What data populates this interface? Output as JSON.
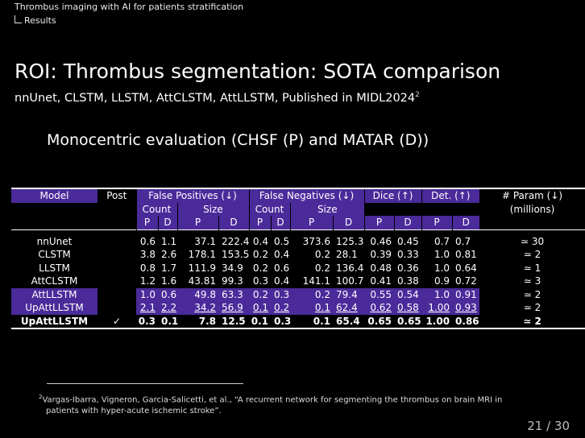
{
  "header": {
    "nav_title": "Thrombus imaging with AI for patients stratification",
    "nav_section": "Results"
  },
  "slide": {
    "title": "ROI: Thrombus segmentation: SOTA comparison",
    "subtitle": "nnUnet, CLSTM, LLSTM, AttCLSTM, AttLLSTM, Published in MIDL2024",
    "subtitle_ref": "2",
    "heading": "Monocentric evaluation (CHSF (P) and MATAR (D))"
  },
  "table": {
    "headers": {
      "model": "Model",
      "post": "Post",
      "fp": "False Positives (↓)",
      "fn": "False Negatives (↓)",
      "dice": "Dice (↑)",
      "det": "Det. (↑)",
      "param": "# Param (↓)",
      "param_unit": "(millions)",
      "count": "Count",
      "size": "Size",
      "p": "P",
      "d": "D"
    },
    "rows": [
      {
        "model": "nnUnet",
        "post": "",
        "fp_cp": "0.6",
        "fp_cd": "1.1",
        "fp_sp": "37.1",
        "fp_sd": "222.4",
        "fn_cp": "0.4",
        "fn_cd": "0.5",
        "fn_sp": "373.6",
        "fn_sd": "125.3",
        "dice_p": "0.46",
        "dice_d": "0.45",
        "det_p": "0.7",
        "det_d": "0.7",
        "param": "≃ 30"
      },
      {
        "model": "CLSTM",
        "post": "",
        "fp_cp": "3.8",
        "fp_cd": "2.6",
        "fp_sp": "178.1",
        "fp_sd": "153.5",
        "fn_cp": "0.2",
        "fn_cd": "0.4",
        "fn_sp": "0.2",
        "fn_sd": "28.1",
        "dice_p": "0.39",
        "dice_d": "0.33",
        "det_p": "1.0",
        "det_d": "0.81",
        "param": "≃ 2"
      },
      {
        "model": "LLSTM",
        "post": "",
        "fp_cp": "0.8",
        "fp_cd": "1.7",
        "fp_sp": "111.9",
        "fp_sd": "34.9",
        "fn_cp": "0.2",
        "fn_cd": "0.6",
        "fn_sp": "0.2",
        "fn_sd": "136.4",
        "dice_p": "0.48",
        "dice_d": "0.36",
        "det_p": "1.0",
        "det_d": "0.64",
        "param": "≃ 1"
      },
      {
        "model": "AttCLSTM",
        "post": "",
        "fp_cp": "1.2",
        "fp_cd": "1.6",
        "fp_sp": "43.81",
        "fp_sd": "99.3",
        "fn_cp": "0.3",
        "fn_cd": "0.4",
        "fn_sp": "141.1",
        "fn_sd": "100.7",
        "dice_p": "0.41",
        "dice_d": "0.38",
        "det_p": "0.9",
        "det_d": "0.72",
        "param": "≃ 3"
      },
      {
        "model": "AttLLSTM",
        "post": "",
        "fp_cp": "1.0",
        "fp_cd": "0.6",
        "fp_sp": "49.8",
        "fp_sd": "63.3",
        "fn_cp": "0.2",
        "fn_cd": "0.3",
        "fn_sp": "0.2",
        "fn_sd": "79.4",
        "dice_p": "0.55",
        "dice_d": "0.54",
        "det_p": "1.0",
        "det_d": "0.91",
        "param": "≃ 2"
      },
      {
        "model": "UpAttLLSTM",
        "post": "",
        "fp_cp": "2.1",
        "fp_cd": "2.2",
        "fp_sp": "34.2",
        "fp_sd": "56.9",
        "fn_cp": "0.1",
        "fn_cd": "0.2",
        "fn_sp": "0.1",
        "fn_sd": "62.4",
        "dice_p": "0.62",
        "dice_d": "0.58",
        "det_p": "1.00",
        "det_d": "0.93",
        "param": "≃ 2"
      },
      {
        "model": "UpAttLLSTM",
        "post": "✓",
        "fp_cp": "0.3",
        "fp_cd": "0.1",
        "fp_sp": "7.8",
        "fp_sd": "12.5",
        "fn_cp": "0.1",
        "fn_cd": "0.3",
        "fn_sp": "0.1",
        "fn_sd": "65.4",
        "dice_p": "0.65",
        "dice_d": "0.65",
        "det_p": "1.00",
        "det_d": "0.86",
        "param": "≃ 2"
      }
    ]
  },
  "footnote": {
    "ref": "2",
    "line1": "Vargas-Ibarra, Vigneron, Garcia-Salicetti, et al., “A recurrent network for segmenting the thrombus on brain MRI in",
    "line2": "patients with hyper-acute ischemic stroke”."
  },
  "page": {
    "number": "21 / 30"
  }
}
